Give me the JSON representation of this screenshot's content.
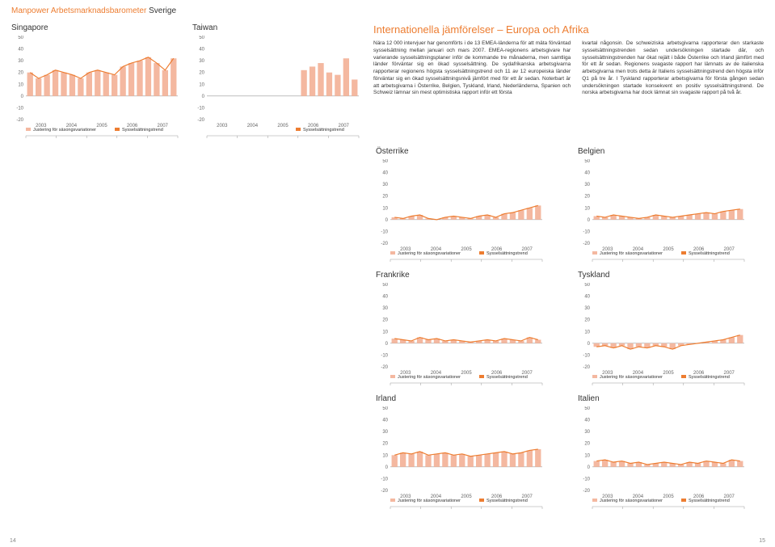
{
  "header": {
    "brand": "Manpower Arbetsmarknadsbarometer",
    "country": "Sverige"
  },
  "intl_title": "Internationella jämförelser – Europa och Afrika",
  "paragraph_left": "Nära 12 000 intervjuer har genomförts i de 13 EMEA-länderna för att mäta förväntad sysselsättning mellan januari och mars 2007. EMEA-regionens arbetsgivare har varierande sysselsättningsplaner inför de kommande tre månaderna, men samtliga länder förväntar sig en ökad sysselsättning. De sydafrikanska arbetsgivarna rapporterar regionens högsta sysselsättningstrend och 11 av 12 europeiska länder förväntar sig en ökad sysselsättningsnivå jämfört med för ett år sedan. Noterbart är att arbetsgivarna i Österrike, Belgien, Tyskland, Irland, Nederländerna, Spanien och Schweiz lämnar sin mest optimistiska rapport inför ett första",
  "paragraph_right": "kvartal någonsin. De schweiziska arbetsgivarna rapporterar den starkaste sysselsättningstrenden sedan undersökningen startade där, och sysselsättningstrenden har ökat rejält i både Österrike och Irland jämfört med för ett år sedan. Regionens svagaste rapport har lämnats av de italienska arbetsgivarna men trots detta är Italiens sysselsättningstrend den högsta inför Q1 på tre år. I Tyskland rapporterar arbetsgivarna för första gången sedan undersökningen startade konsekvent en positiv sysselsättningstrend. De norska arbetsgivarna har dock lämnat sin svagaste rapport på två år.",
  "legend": {
    "series1": "Justering för säsongsvariationer",
    "series2": "Sysselsättningstrend"
  },
  "legend_taiwan": {
    "series2": "Sysselsättningstrend"
  },
  "axis": {
    "yticks": [
      -20,
      -10,
      0,
      10,
      20,
      30,
      40,
      50
    ],
    "xlabels": [
      "2003",
      "2004",
      "2005",
      "2006",
      "2007"
    ]
  },
  "colors": {
    "bars": "#f4b8a0",
    "line": "#ed7d31",
    "axis": "#999999",
    "grid": "#e8e8e8",
    "legend_box1": "#f4b8a0",
    "legend_box2": "#ed7d31",
    "bg": "#ffffff"
  },
  "page_left": "14",
  "page_right": "15",
  "charts": {
    "singapore": {
      "title": "Singapore",
      "bars": [
        20,
        15,
        18,
        22,
        20,
        18,
        15,
        20,
        22,
        20,
        18,
        25,
        28,
        30,
        33,
        28,
        22,
        32
      ],
      "line": [
        20,
        15,
        18,
        22,
        20,
        18,
        15,
        20,
        22,
        20,
        18,
        25,
        28,
        30,
        33,
        28,
        22,
        32
      ],
      "two_legend": true
    },
    "taiwan": {
      "title": "Taiwan",
      "bars": [
        null,
        null,
        null,
        null,
        null,
        null,
        null,
        null,
        null,
        null,
        null,
        22,
        25,
        28,
        20,
        18,
        32,
        14
      ],
      "line": null,
      "two_legend": false
    },
    "osterrike": {
      "title": "Österrike",
      "bars": [
        2,
        1,
        3,
        4,
        1,
        0,
        2,
        3,
        2,
        1,
        3,
        4,
        2,
        5,
        6,
        8,
        10,
        12
      ],
      "line": [
        2,
        1,
        3,
        4,
        1,
        0,
        2,
        3,
        2,
        1,
        3,
        4,
        2,
        5,
        6,
        8,
        10,
        12
      ],
      "two_legend": true
    },
    "belgien": {
      "title": "Belgien",
      "bars": [
        3,
        2,
        4,
        3,
        2,
        1,
        2,
        4,
        3,
        2,
        3,
        4,
        5,
        6,
        5,
        7,
        8,
        9
      ],
      "line": [
        3,
        2,
        4,
        3,
        2,
        1,
        2,
        4,
        3,
        2,
        3,
        4,
        5,
        6,
        5,
        7,
        8,
        9
      ],
      "two_legend": true
    },
    "frankrike": {
      "title": "Frankrike",
      "bars": [
        4,
        3,
        2,
        5,
        3,
        4,
        2,
        3,
        2,
        1,
        2,
        3,
        2,
        4,
        3,
        2,
        5,
        3
      ],
      "line": [
        4,
        3,
        2,
        5,
        3,
        4,
        2,
        3,
        2,
        1,
        2,
        3,
        2,
        4,
        3,
        2,
        5,
        3
      ],
      "two_legend": true
    },
    "tyskland": {
      "title": "Tyskland",
      "bars": [
        -3,
        -2,
        -4,
        -2,
        -5,
        -3,
        -4,
        -2,
        -3,
        -5,
        -2,
        -1,
        0,
        1,
        2,
        3,
        5,
        7
      ],
      "line": [
        -3,
        -2,
        -4,
        -2,
        -5,
        -3,
        -4,
        -2,
        -3,
        -5,
        -2,
        -1,
        0,
        1,
        2,
        3,
        5,
        7
      ],
      "two_legend": true
    },
    "irland": {
      "title": "Irland",
      "bars": [
        10,
        12,
        11,
        13,
        10,
        11,
        12,
        10,
        11,
        9,
        10,
        11,
        12,
        13,
        11,
        12,
        14,
        15
      ],
      "line": [
        10,
        12,
        11,
        13,
        10,
        11,
        12,
        10,
        11,
        9,
        10,
        11,
        12,
        13,
        11,
        12,
        14,
        15
      ],
      "two_legend": true
    },
    "italien": {
      "title": "Italien",
      "bars": [
        5,
        6,
        4,
        5,
        3,
        4,
        2,
        3,
        4,
        3,
        2,
        4,
        3,
        5,
        4,
        3,
        6,
        5
      ],
      "line": [
        5,
        6,
        4,
        5,
        3,
        4,
        2,
        3,
        4,
        3,
        2,
        4,
        3,
        5,
        4,
        3,
        6,
        5
      ],
      "two_legend": true
    }
  }
}
